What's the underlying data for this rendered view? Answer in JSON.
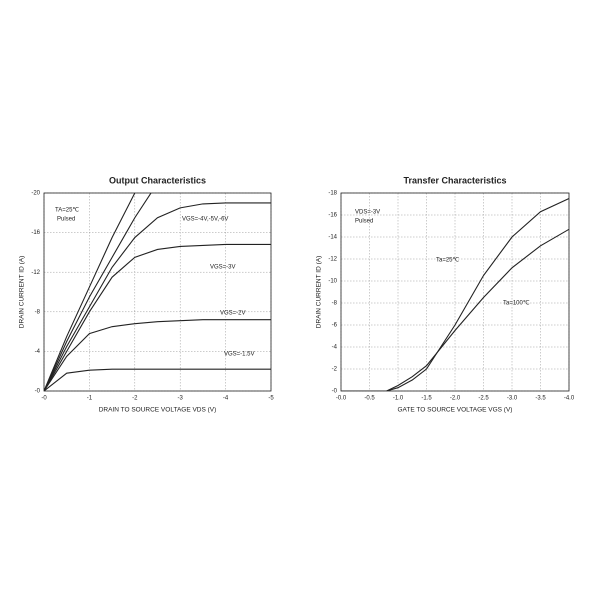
{
  "chart_data": [
    {
      "type": "line",
      "title": "Output Characteristics",
      "x_label": "DRAIN TO SOURCE VOLTAGE  VDS  (V)",
      "y_label": "DRAIN CURRENT  ID  (A)",
      "x": [
        0,
        -0.5,
        -1,
        -1.5,
        -2,
        -2.5,
        -3,
        -3.5,
        -4,
        -4.5,
        -5
      ],
      "series": [
        {
          "color": "#222222",
          "values": [
            0,
            -5.5,
            -10.5,
            -15.5,
            -20,
            null,
            null,
            null,
            null,
            null,
            null
          ]
        },
        {
          "color": "#222222",
          "values": [
            0,
            -5,
            -9.5,
            -13.5,
            -17.5,
            -21,
            null,
            null,
            null,
            null,
            null
          ]
        },
        {
          "color": "#222222",
          "values": [
            0,
            -4.5,
            -8.5,
            -12.5,
            -15.5,
            -17.5,
            -18.5,
            -18.9,
            -19,
            -19,
            -19
          ]
        },
        {
          "color": "#222222",
          "values": [
            0,
            -4,
            -8,
            -11.5,
            -13.5,
            -14.3,
            -14.6,
            -14.7,
            -14.8,
            -14.8,
            -14.8
          ]
        },
        {
          "color": "#222222",
          "values": [
            0,
            -3.5,
            -5.8,
            -6.5,
            -6.8,
            -7,
            -7.1,
            -7.2,
            -7.2,
            -7.2,
            -7.2
          ]
        },
        {
          "color": "#222222",
          "values": [
            0,
            -1.8,
            -2.1,
            -2.2,
            -2.2,
            -2.2,
            -2.2,
            -2.2,
            -2.2,
            -2.2,
            -2.2
          ]
        }
      ],
      "annotations": [
        "TA=25℃",
        "Pulsed",
        "VGS=-4V,-5V,-6V",
        "VGS=-3V",
        "VGS=-2V",
        "VGS=-1.5V"
      ],
      "xlim": [
        0,
        -5
      ],
      "ylim": [
        0,
        -20
      ],
      "xticks": [
        {
          "value": 0,
          "label": "-0"
        },
        -1,
        -2,
        -3,
        -4,
        -5
      ],
      "yticks": [
        {
          "value": 0,
          "label": "-0"
        },
        -4,
        -8,
        -12,
        -16,
        -20
      ],
      "grid": true
    },
    {
      "type": "line",
      "title": "Transfer Characteristics",
      "x_label": "GATE TO SOURCE VOLTAGE  VGS  (V)",
      "y_label": "DRAIN CURRENT  ID  (A)",
      "x": [
        0,
        -0.5,
        -0.8,
        -1,
        -1.25,
        -1.5,
        -2,
        -2.5,
        -3,
        -3.5,
        -4
      ],
      "series": [
        {
          "color": "#222222",
          "values": [
            0,
            0,
            0,
            -0.3,
            -1,
            -2,
            -6,
            -10.5,
            -14,
            -16.3,
            -17.5
          ]
        },
        {
          "color": "#222222",
          "values": [
            0,
            0,
            0,
            -0.5,
            -1.3,
            -2.3,
            -5.5,
            -8.5,
            -11.2,
            -13.2,
            -14.7
          ]
        }
      ],
      "annotations": [
        "VDS=-3V",
        "Pulsed",
        "Ta=25℃",
        "Ta=100℃"
      ],
      "xlim": [
        0,
        -4
      ],
      "ylim": [
        0,
        -18
      ],
      "xticks": [
        {
          "value": 0,
          "label": "-0.0"
        },
        -0.5,
        {
          "value": -1,
          "label": "-1.0"
        },
        -1.5,
        {
          "value": -2,
          "label": "-2.0"
        },
        -2.5,
        {
          "value": -3,
          "label": "-3.0"
        },
        -3.5,
        {
          "value": -4,
          "label": "-4.0"
        }
      ],
      "yticks": [
        {
          "value": 0,
          "label": "-0"
        },
        -2,
        -4,
        -6,
        -8,
        -10,
        -12,
        -14,
        -16,
        -18
      ],
      "grid": true
    }
  ]
}
